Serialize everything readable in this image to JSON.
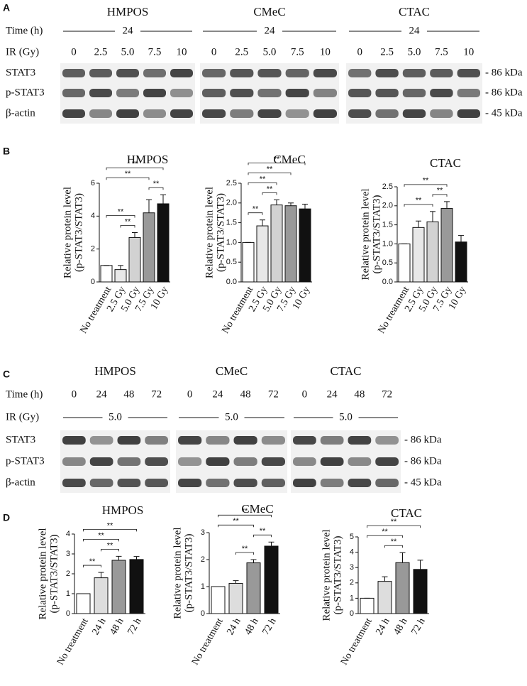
{
  "panels": [
    "A",
    "B",
    "C",
    "D"
  ],
  "blots": [
    {
      "groups": [
        "HMPOS",
        "CMeC",
        "CTAC"
      ],
      "rows": [
        {
          "label": "Time (h)",
          "span": "24"
        },
        {
          "label": "IR (Gy)",
          "values": [
            "0",
            "2.5",
            "5.0",
            "7.5",
            "10"
          ]
        }
      ],
      "bands": [
        "STAT3",
        "p-STAT3",
        "β-actin"
      ],
      "sizes": [
        "- 86 kDa",
        "- 86 kDa",
        "- 45 kDa"
      ]
    },
    {
      "groups": [
        "HMPOS",
        "CMeC",
        "CTAC"
      ],
      "rows": [
        {
          "label": "Time (h)",
          "values": [
            "0",
            "24",
            "48",
            "72"
          ]
        },
        {
          "label": "IR (Gy)",
          "span": "5.0"
        }
      ],
      "bands": [
        "STAT3",
        "p-STAT3",
        "β-actin"
      ],
      "sizes": [
        "- 86 kDa",
        "- 86 kDa",
        "- 45 kDa"
      ]
    }
  ],
  "chart_data": [
    {
      "type": "bar",
      "title": "HMPOS",
      "ylabel": [
        "Relative protein level",
        "(p-STAT3/STAT3)"
      ],
      "categories": [
        "No treatment",
        "2.5 Gy",
        "5.0 Gy",
        "7.5 Gy",
        "10 Gy"
      ],
      "values": [
        1,
        0.75,
        2.7,
        4.2,
        4.75
      ],
      "errors": [
        0,
        0.25,
        0.3,
        0.8,
        0.55
      ],
      "colors": [
        "#ffffff",
        "#e8e8e8",
        "#d2d2d2",
        "#999999",
        "#111111"
      ],
      "ylim": [
        0,
        6
      ],
      "yticks": [
        0,
        2,
        4,
        6
      ],
      "significance": [
        {
          "from": 1,
          "to": 2,
          "label": "**"
        },
        {
          "from": 0,
          "to": 2,
          "label": "**"
        },
        {
          "from": 3,
          "to": 4,
          "label": "**"
        },
        {
          "from": 0,
          "to": 3,
          "label": "**"
        },
        {
          "from": 0,
          "to": 4,
          "label": "**"
        }
      ]
    },
    {
      "type": "bar",
      "title": "CMeC",
      "ylabel": [
        "Relative protein level",
        "(p-STAT3/STAT3)"
      ],
      "categories": [
        "No treatment",
        "2.5 Gy",
        "5.0 Gy",
        "7.5 Gy",
        "10 Gy"
      ],
      "values": [
        1,
        1.42,
        1.95,
        1.93,
        1.85
      ],
      "errors": [
        0,
        0.15,
        0.13,
        0.07,
        0.12
      ],
      "colors": [
        "#ffffff",
        "#e8e8e8",
        "#d2d2d2",
        "#999999",
        "#111111"
      ],
      "ylim": [
        0,
        2.5
      ],
      "yticks": [
        {
          "value": 0,
          "label": "0.0"
        },
        {
          "value": 0.5,
          "label": "0.5"
        },
        {
          "value": 1,
          "label": "1.0"
        },
        {
          "value": 1.5,
          "label": "1.5"
        },
        {
          "value": 2,
          "label": "2.0"
        },
        {
          "value": 2.5,
          "label": "2.5"
        }
      ],
      "significance": [
        {
          "from": 0,
          "to": 1,
          "label": "**"
        },
        {
          "from": 1,
          "to": 2,
          "label": "**"
        },
        {
          "from": 0,
          "to": 2,
          "label": "**"
        },
        {
          "from": 0,
          "to": 3,
          "label": "**"
        },
        {
          "from": 0,
          "to": 4,
          "label": "**"
        }
      ]
    },
    {
      "type": "bar",
      "title": "CTAC",
      "ylabel": [
        "Relative protein level",
        "(p-STAT3/STAT3)"
      ],
      "categories": [
        "No treatment",
        "2.5 Gy",
        "5.0 Gy",
        "7.5 Gy",
        "10 Gy"
      ],
      "values": [
        1,
        1.43,
        1.58,
        1.93,
        1.05
      ],
      "errors": [
        0,
        0.17,
        0.27,
        0.18,
        0.17
      ],
      "colors": [
        "#ffffff",
        "#e8e8e8",
        "#d2d2d2",
        "#999999",
        "#111111"
      ],
      "ylim": [
        0,
        2.5
      ],
      "yticks": [
        {
          "value": 0,
          "label": "0.0"
        },
        {
          "value": 0.5,
          "label": "0.5"
        },
        {
          "value": 1,
          "label": "1.0"
        },
        {
          "value": 1.5,
          "label": "1.5"
        },
        {
          "value": 2,
          "label": "2.0"
        },
        {
          "value": 2.5,
          "label": "2.5"
        }
      ],
      "significance": [
        {
          "from": 0,
          "to": 2,
          "label": "**"
        },
        {
          "from": 2,
          "to": 3,
          "label": "**"
        },
        {
          "from": 0,
          "to": 3,
          "label": "**"
        }
      ]
    },
    {
      "type": "bar",
      "title": "HMPOS",
      "ylabel": [
        "Relative protein level",
        "(p-STAT3/STAT3)"
      ],
      "categories": [
        "No treatment",
        "24 h",
        "48 h",
        "72 h"
      ],
      "values": [
        1,
        1.8,
        2.68,
        2.72
      ],
      "errors": [
        0,
        0.27,
        0.2,
        0.15
      ],
      "colors": [
        "#ffffff",
        "#dddddd",
        "#999999",
        "#111111"
      ],
      "ylim": [
        0,
        4
      ],
      "yticks": [
        0,
        1,
        2,
        3,
        4
      ],
      "significance": [
        {
          "from": 0,
          "to": 1,
          "label": "**"
        },
        {
          "from": 1,
          "to": 2,
          "label": "**"
        },
        {
          "from": 0,
          "to": 2,
          "label": "**"
        },
        {
          "from": 0,
          "to": 3,
          "label": "**"
        }
      ]
    },
    {
      "type": "bar",
      "title": "CMeC",
      "ylabel": [
        "Relative protein level",
        "(p-STAT3/STAT3)"
      ],
      "categories": [
        "No treatment",
        "24 h",
        "48 h",
        "72 h"
      ],
      "values": [
        1,
        1.12,
        1.88,
        2.5
      ],
      "errors": [
        0,
        0.1,
        0.12,
        0.15
      ],
      "colors": [
        "#ffffff",
        "#dddddd",
        "#999999",
        "#111111"
      ],
      "ylim": [
        0,
        3
      ],
      "yticks": [
        0,
        1,
        2,
        3
      ],
      "significance": [
        {
          "from": 1,
          "to": 2,
          "label": "**"
        },
        {
          "from": 2,
          "to": 3,
          "label": "**"
        },
        {
          "from": 0,
          "to": 2,
          "label": "**"
        },
        {
          "from": 0,
          "to": 3,
          "label": "**"
        }
      ]
    },
    {
      "type": "bar",
      "title": "CTAC",
      "ylabel": [
        "Relative protein level",
        "(p-STAT3/STAT3)"
      ],
      "categories": [
        "No treatment",
        "24 h",
        "48 h",
        "72 h"
      ],
      "values": [
        1,
        2.1,
        3.32,
        2.88
      ],
      "errors": [
        0,
        0.3,
        0.65,
        0.6
      ],
      "colors": [
        "#ffffff",
        "#dddddd",
        "#999999",
        "#111111"
      ],
      "ylim": [
        0,
        5
      ],
      "yticks": [
        0,
        1,
        2,
        3,
        4,
        5
      ],
      "significance": [
        {
          "from": 1,
          "to": 2,
          "label": "**"
        },
        {
          "from": 0,
          "to": 2,
          "label": "**"
        },
        {
          "from": 0,
          "to": 3,
          "label": "**"
        }
      ]
    }
  ]
}
